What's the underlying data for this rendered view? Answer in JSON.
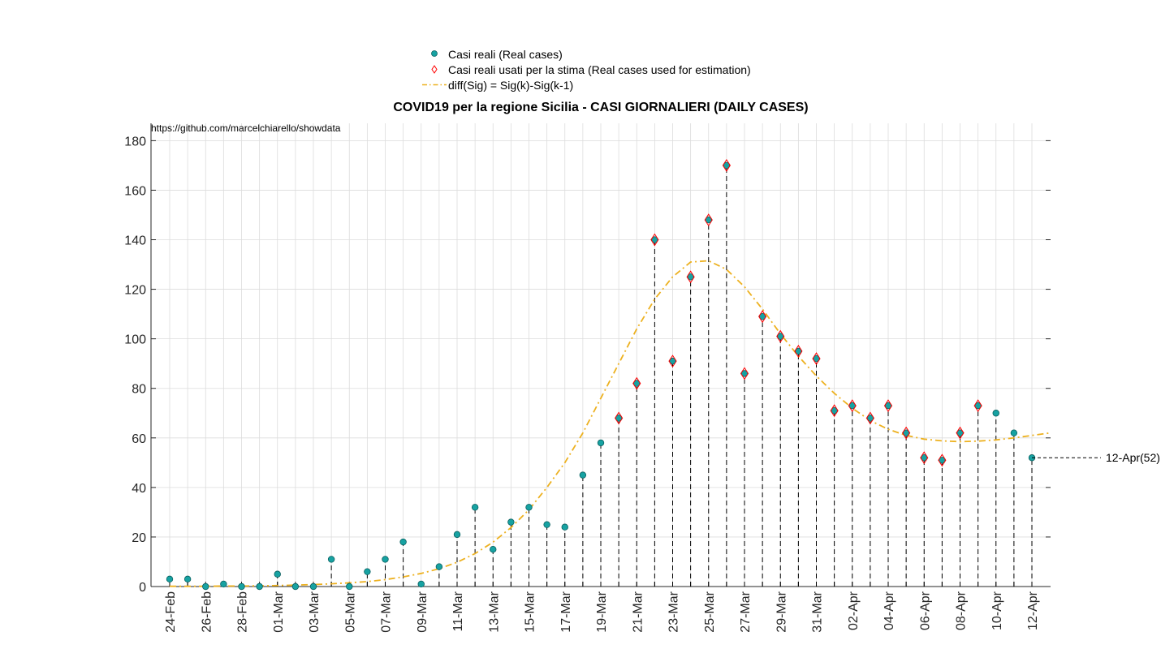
{
  "legend": {
    "real": "Casi reali (Real cases)",
    "used": "Casi reali usati per la stima (Real cases used for estimation)",
    "fit": "diff(Sig) = Sig(k)-Sig(k-1)"
  },
  "source_text": "https://github.com/marcelchiarello/showdata",
  "chart_data": {
    "type": "scatter",
    "title": "COVID19 per la regione Sicilia - CASI GIORNALIERI (DAILY CASES)",
    "xlabel": "",
    "ylabel": "",
    "ylim": [
      0,
      187
    ],
    "yticks": [
      0,
      20,
      40,
      60,
      80,
      100,
      120,
      140,
      160,
      180
    ],
    "grid": true,
    "legend_position": "top-center, outside",
    "x": [
      "24-Feb",
      "25-Feb",
      "26-Feb",
      "27-Feb",
      "28-Feb",
      "29-Feb",
      "01-Mar",
      "02-Mar",
      "03-Mar",
      "04-Mar",
      "05-Mar",
      "06-Mar",
      "07-Mar",
      "08-Mar",
      "09-Mar",
      "10-Mar",
      "11-Mar",
      "12-Mar",
      "13-Mar",
      "14-Mar",
      "15-Mar",
      "16-Mar",
      "17-Mar",
      "18-Mar",
      "19-Mar",
      "20-Mar",
      "21-Mar",
      "22-Mar",
      "23-Mar",
      "24-Mar",
      "25-Mar",
      "26-Mar",
      "27-Mar",
      "28-Mar",
      "29-Mar",
      "30-Mar",
      "31-Mar",
      "01-Apr",
      "02-Apr",
      "03-Apr",
      "04-Apr",
      "05-Apr",
      "06-Apr",
      "07-Apr",
      "08-Apr",
      "09-Apr",
      "10-Apr",
      "11-Apr",
      "12-Apr"
    ],
    "xticks": [
      "24-Feb",
      "26-Feb",
      "28-Feb",
      "01-Mar",
      "03-Mar",
      "05-Mar",
      "07-Mar",
      "09-Mar",
      "11-Mar",
      "13-Mar",
      "15-Mar",
      "17-Mar",
      "19-Mar",
      "21-Mar",
      "23-Mar",
      "25-Mar",
      "27-Mar",
      "29-Mar",
      "31-Mar",
      "02-Apr",
      "04-Apr",
      "06-Apr",
      "08-Apr",
      "10-Apr",
      "12-Apr"
    ],
    "series": [
      {
        "name": "Casi reali (Real cases)",
        "color": "#17a2a2",
        "values": [
          3,
          3,
          0,
          1,
          0,
          0,
          5,
          0,
          0,
          11,
          0,
          6,
          11,
          18,
          1,
          8,
          21,
          32,
          15,
          26,
          32,
          25,
          24,
          45,
          58,
          68,
          82,
          140,
          91,
          125,
          148,
          170,
          86,
          109,
          101,
          95,
          92,
          71,
          73,
          68,
          73,
          62,
          52,
          51,
          62,
          73,
          70,
          62,
          52
        ]
      },
      {
        "name": "Casi reali usati per la stima (Real cases used for estimation)",
        "color": "#ff0000",
        "marker": "diamond",
        "x": [
          "20-Mar",
          "21-Mar",
          "22-Mar",
          "23-Mar",
          "24-Mar",
          "25-Mar",
          "26-Mar",
          "27-Mar",
          "28-Mar",
          "29-Mar",
          "30-Mar",
          "31-Mar",
          "01-Apr",
          "02-Apr",
          "03-Apr",
          "04-Apr",
          "05-Apr",
          "06-Apr",
          "07-Apr",
          "08-Apr",
          "09-Apr"
        ],
        "values": [
          68,
          82,
          140,
          91,
          125,
          148,
          170,
          86,
          109,
          101,
          95,
          92,
          71,
          73,
          68,
          73,
          62,
          52,
          51,
          62,
          73
        ]
      },
      {
        "name": "diff(Sig) = Sig(k)-Sig(k-1)",
        "color": "#edb120",
        "style": "dash-dot",
        "values": [
          0.1,
          0.1,
          0.1,
          0.2,
          0.2,
          0.3,
          0.4,
          0.6,
          0.8,
          1.1,
          1.5,
          2.0,
          2.8,
          3.9,
          5.3,
          7.2,
          9.8,
          13.3,
          17.9,
          23.8,
          31,
          40,
          50,
          62,
          76,
          90,
          104,
          116,
          125,
          131,
          131.5,
          128,
          121,
          112,
          102,
          93,
          85,
          78,
          72,
          67,
          63.5,
          61,
          59.5,
          58.8,
          58.5,
          58.7,
          59.2,
          60,
          61
        ]
      }
    ],
    "annotations": [
      {
        "x": "12-Apr",
        "y": 52,
        "text": "12-Apr(52)"
      }
    ]
  }
}
